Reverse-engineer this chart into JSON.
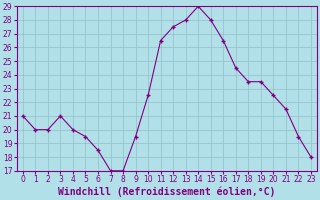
{
  "x": [
    0,
    1,
    2,
    3,
    4,
    5,
    6,
    7,
    8,
    9,
    10,
    11,
    12,
    13,
    14,
    15,
    16,
    17,
    18,
    19,
    20,
    21,
    22,
    23
  ],
  "y": [
    21,
    20,
    20,
    21,
    20,
    19.5,
    18.5,
    17,
    17,
    19.5,
    22.5,
    26.5,
    27.5,
    28,
    29,
    28,
    26.5,
    24.5,
    23.5,
    23.5,
    22.5,
    21.5,
    19.5,
    18
  ],
  "line_color": "#800080",
  "marker_color": "#800080",
  "bg_color": "#b2e0e8",
  "grid_color": "#90c0c8",
  "xlabel": "Windchill (Refroidissement éolien,°C)",
  "ylim": [
    17,
    29
  ],
  "xlim": [
    -0.5,
    23.5
  ],
  "yticks": [
    17,
    18,
    19,
    20,
    21,
    22,
    23,
    24,
    25,
    26,
    27,
    28,
    29
  ],
  "xticks": [
    0,
    1,
    2,
    3,
    4,
    5,
    6,
    7,
    8,
    9,
    10,
    11,
    12,
    13,
    14,
    15,
    16,
    17,
    18,
    19,
    20,
    21,
    22,
    23
  ],
  "tick_label_color": "#800080",
  "tick_label_size": 5.5,
  "xlabel_size": 7.0
}
